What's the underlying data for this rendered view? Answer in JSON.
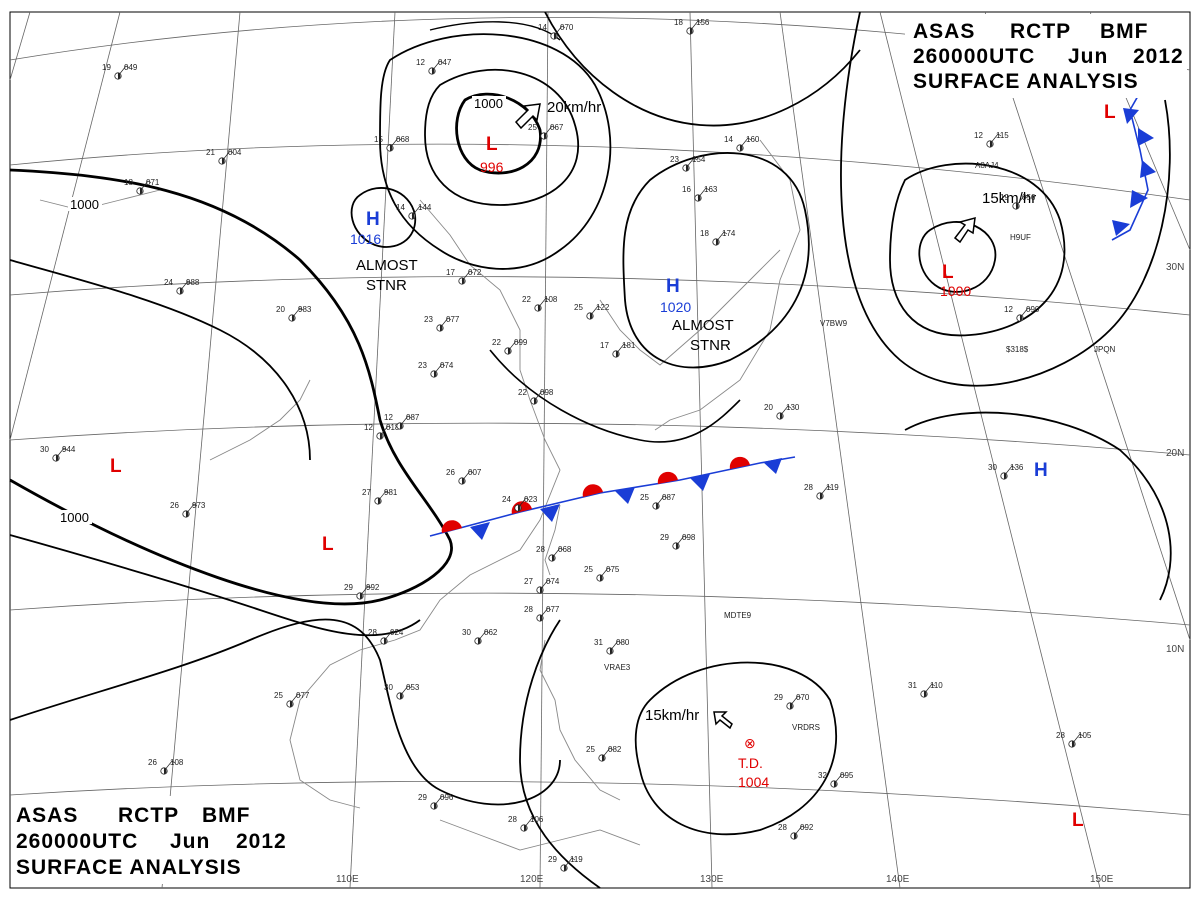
{
  "header_top": {
    "line1": [
      "ASAS",
      "RCTP",
      "BMF"
    ],
    "line2": [
      "260000UTC",
      "Jun",
      "2012"
    ],
    "line3": "SURFACE  ANALYSIS"
  },
  "header_bottom": {
    "line1": [
      "ASAS",
      "RCTP",
      "BMF"
    ],
    "line2": [
      "260000UTC",
      "Jun",
      "2012"
    ],
    "line3": "SURFACE  ANALYSIS"
  },
  "isobar_labels": [
    "1000",
    "1000",
    "1000"
  ],
  "systems": [
    {
      "symbol": "L",
      "value": "996",
      "color": "#e00000"
    },
    {
      "symbol": "H",
      "value": "1016",
      "color": "#1a3dd6"
    },
    {
      "symbol": "H",
      "value": "1020",
      "color": "#1a3dd6"
    },
    {
      "symbol": "L",
      "value": "1000",
      "color": "#e00000"
    },
    {
      "symbol": "L",
      "value": "",
      "color": "#e00000"
    },
    {
      "symbol": "L",
      "value": "",
      "color": "#e00000"
    },
    {
      "symbol": "H",
      "value": "",
      "color": "#1a3dd6"
    },
    {
      "symbol": "L",
      "value": "",
      "color": "#e00000"
    },
    {
      "symbol": "L",
      "value": "",
      "color": "#e00000"
    }
  ],
  "td": {
    "symbol": "⊗",
    "label": "T.D.",
    "value": "1004",
    "color": "#e00000"
  },
  "notes": {
    "almost1": "ALMOST",
    "stnr1": "STNR",
    "almost2": "ALMOST",
    "stnr2": "STNR"
  },
  "motions": [
    "20km/hr",
    "15km/hr",
    "15km/hr"
  ],
  "lon_labels": [
    "110E",
    "120E",
    "130E",
    "140E",
    "150E"
  ],
  "lat_labels": [
    "30N",
    "20N",
    "10N"
  ],
  "station_ids": [
    "VRAE3",
    "MDTE9",
    "V7BW9",
    "JPQN",
    "$318$",
    "VRDRS",
    "A8AJ4",
    "H9UF",
    "MDTE9"
  ],
  "station_plots": [
    "19 049",
    "12 047",
    "21 004",
    "15 068",
    "18 071",
    "14 144",
    "17 072",
    "20 983",
    "24 988",
    "22 108",
    "25 122",
    "17 181",
    "22 099",
    "23 077",
    "23 074",
    "12 018",
    "26 007",
    "24 023",
    "27 981",
    "26 973",
    "30 944",
    "29 992",
    "28 024",
    "30 062",
    "25 077",
    "26 108",
    "29 096",
    "28 106",
    "29 119",
    "28 068",
    "27 074",
    "25 075",
    "28 077",
    "31 080",
    "29 098",
    "25 087",
    "22 098",
    "23 154",
    "16 163",
    "18 174",
    "14 160",
    "20 130",
    "12 115",
    "19 056",
    "12 090",
    "30 136",
    "28 119",
    "29 070",
    "32 095",
    "31 110",
    "28 105",
    "28 092",
    "25 067",
    "25 082",
    "30 053",
    "18 156",
    "12 087",
    "14 070"
  ],
  "colors": {
    "isobar": "#000000",
    "low": "#e00000",
    "high": "#1a3dd6",
    "warm_front": "#e00000",
    "cold_front": "#1a3dd6",
    "coast": "#888888",
    "grid": "#666666"
  }
}
